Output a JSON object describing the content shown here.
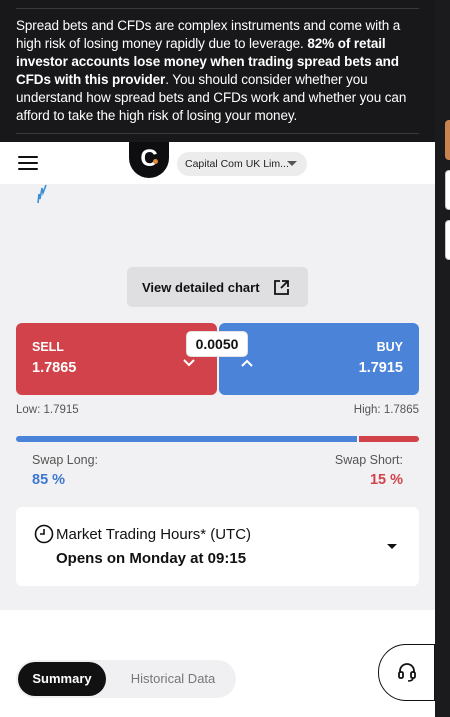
{
  "banner": {
    "text_a": "Spread bets and CFDs are complex instruments and come with a high risk of losing money rapidly due to leverage. ",
    "text_bold": "82% of retail investor accounts lose money when trading spread bets and CFDs with this provider",
    "text_b": ". You should consider whether you understand how spread bets and CFDs work and whether you can afford to take the high risk of losing your money."
  },
  "header": {
    "logo_letter": "C",
    "entity_label": "Capital Com UK Lim..."
  },
  "chart": {
    "button_label": "View detailed chart",
    "sparkline_color": "#3a8fd6"
  },
  "trade": {
    "sell_label": "SELL",
    "sell_price": "1.7865",
    "buy_label": "BUY",
    "buy_price": "1.7915",
    "spread": "0.0050",
    "low_label": "Low: 1.7915",
    "high_label": "High: 1.7865",
    "long_pct": 85,
    "short_pct": 15
  },
  "swap": {
    "long_label": "Swap Long:",
    "long_value": "85 %",
    "short_label": "Swap Short:",
    "short_value": "15 %"
  },
  "hours": {
    "title": "Market Trading Hours* (UTC)",
    "status": "Opens on Monday at 09:15"
  },
  "tabs": [
    {
      "label": "Summary",
      "active": true
    },
    {
      "label": "Historical Data",
      "active": false
    }
  ],
  "colors": {
    "sell": "#d2424a",
    "buy": "#4a83d8",
    "banner_bg": "#18181a"
  }
}
